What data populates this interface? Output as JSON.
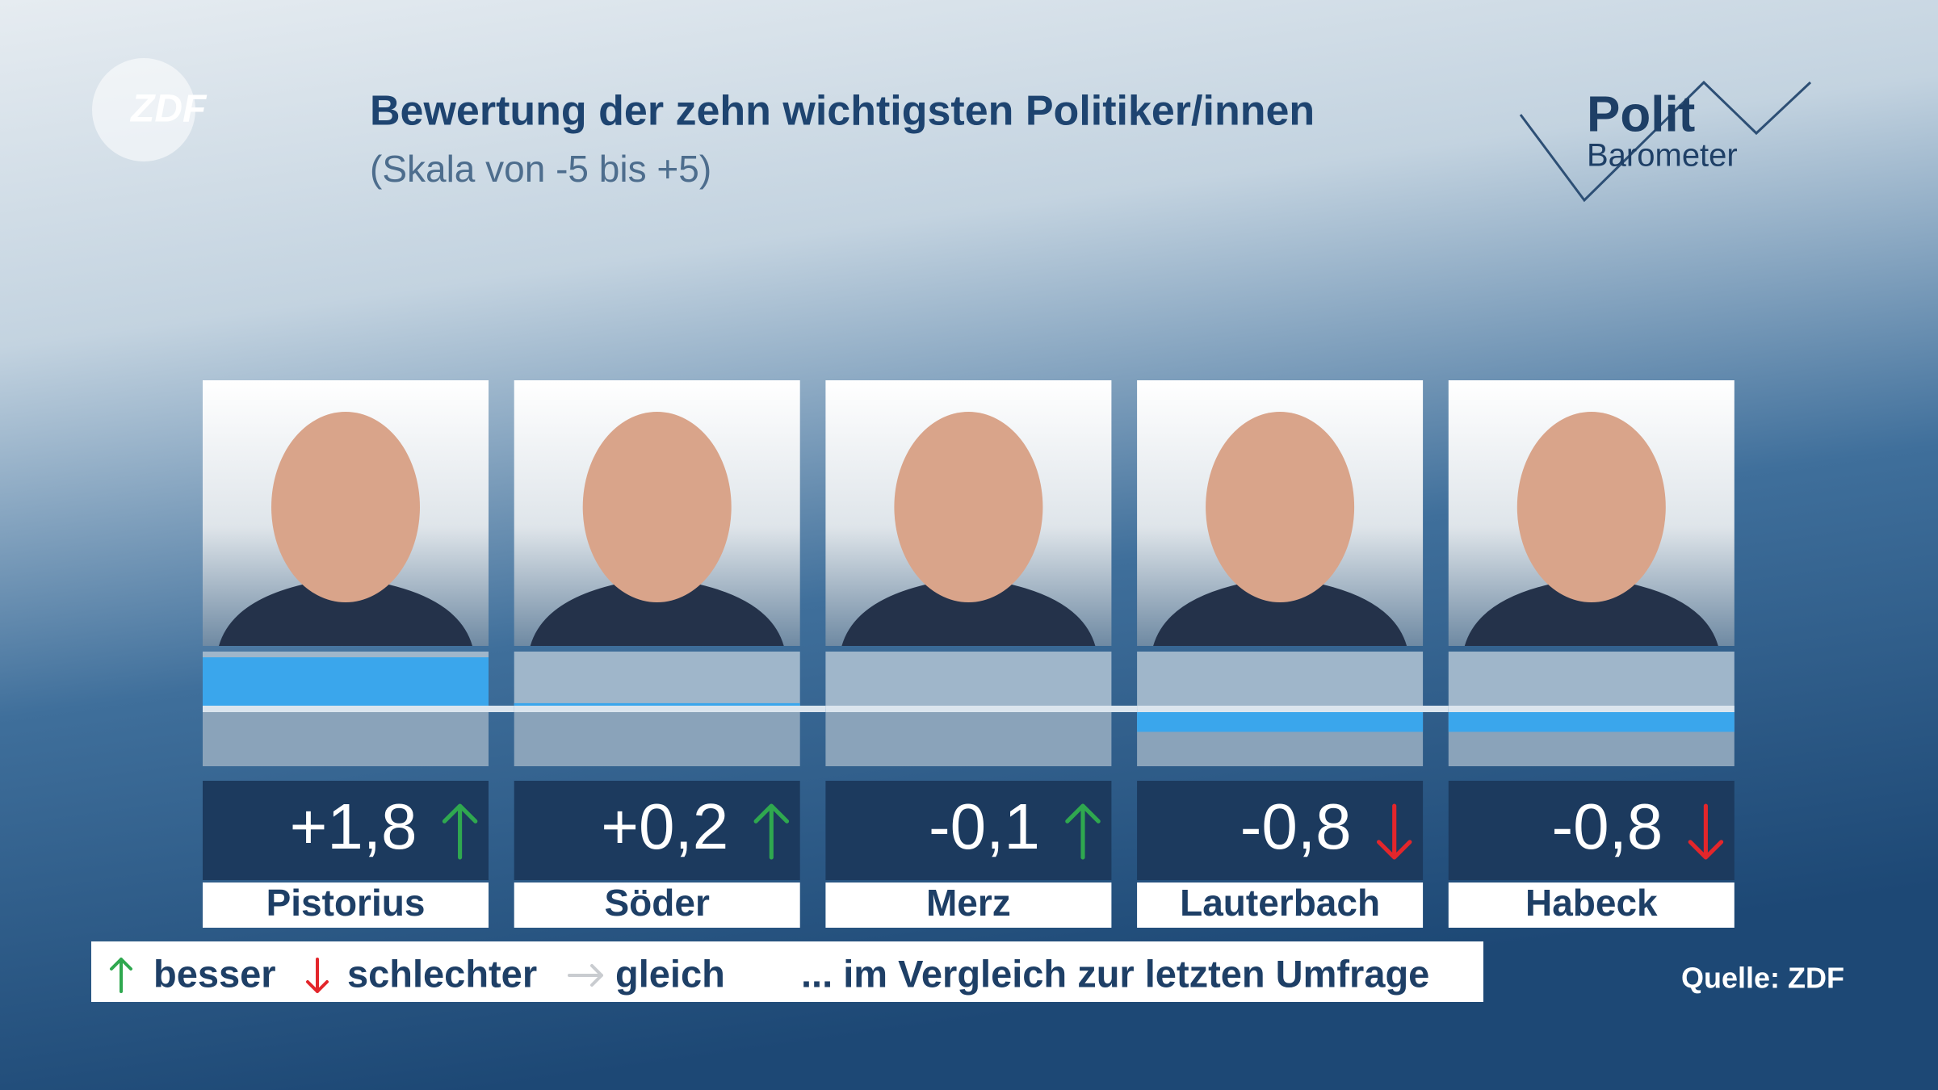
{
  "logo": "ZDF",
  "brand": {
    "line1": "Polit",
    "line2": "Barometer"
  },
  "chart_data": {
    "type": "bar",
    "title": "Bewertung der zehn wichtigsten Politiker/innen",
    "subtitle": "(Skala von -5 bis +5)",
    "categories": [
      "Pistorius",
      "Söder",
      "Merz",
      "Lauterbach",
      "Habeck"
    ],
    "values": [
      1.8,
      0.2,
      -0.1,
      -0.8,
      -0.8
    ],
    "value_labels": [
      "+1,8",
      "+0,2",
      "-0,1",
      "-0,8",
      "-0,8"
    ],
    "trends": [
      "up",
      "up",
      "up",
      "down",
      "down"
    ],
    "trend_colors": {
      "up": "#2fa84f",
      "down": "#e3262b",
      "same": "#c9ccd0"
    },
    "color": "#3aa6ec",
    "ylim": [
      -2,
      2
    ],
    "legend": [
      {
        "trend": "up",
        "label": "besser"
      },
      {
        "trend": "down",
        "label": "schlechter"
      },
      {
        "trend": "same",
        "label": "gleich"
      }
    ],
    "legend_note": "... im Vergleich zur letzten Umfrage",
    "source": "Quelle: ZDF"
  }
}
